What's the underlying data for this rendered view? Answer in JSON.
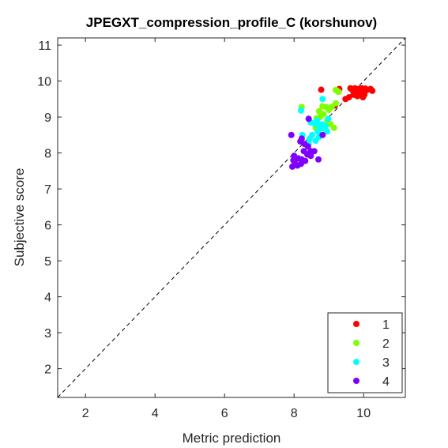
{
  "chart_data": {
    "type": "scatter",
    "title": "JPEGXT_compression_profile_C (korshunov)",
    "xlabel": "Metric prediction",
    "ylabel": "Subjective score",
    "xlim": [
      1.2,
      11.2
    ],
    "ylim": [
      1.2,
      11.2
    ],
    "xticks": [
      2,
      4,
      6,
      8,
      10
    ],
    "yticks": [
      2,
      3,
      4,
      5,
      6,
      7,
      8,
      9,
      10,
      11
    ],
    "grid": false,
    "legend_position": "bottom-right",
    "diagonal": {
      "style": "dashed",
      "color": "#000000",
      "from": [
        1.2,
        1.2
      ],
      "to": [
        11.2,
        11.2
      ]
    },
    "series": [
      {
        "name": "1",
        "color": "#ff0000",
        "points": [
          [
            9.65,
            9.78
          ],
          [
            9.7,
            9.72
          ],
          [
            9.75,
            9.8
          ],
          [
            9.8,
            9.75
          ],
          [
            9.85,
            9.78
          ],
          [
            9.9,
            9.72
          ],
          [
            9.95,
            9.8
          ],
          [
            10.0,
            9.76
          ],
          [
            10.05,
            9.79
          ],
          [
            10.1,
            9.75
          ],
          [
            10.2,
            9.78
          ],
          [
            10.25,
            9.73
          ],
          [
            9.72,
            9.62
          ],
          [
            9.82,
            9.58
          ],
          [
            9.92,
            9.64
          ],
          [
            10.02,
            9.62
          ],
          [
            9.58,
            9.55
          ],
          [
            9.48,
            9.5
          ],
          [
            9.3,
            9.78
          ],
          [
            8.78,
            9.76
          ],
          [
            9.18,
            9.32
          ],
          [
            9.62,
            9.8
          ],
          [
            9.88,
            9.66
          ],
          [
            9.98,
            9.55
          ]
        ]
      },
      {
        "name": "2",
        "color": "#7fff00",
        "points": [
          [
            9.22,
            9.74
          ],
          [
            9.28,
            9.7
          ],
          [
            9.2,
            9.75
          ],
          [
            8.22,
            9.28
          ],
          [
            8.82,
            9.3
          ],
          [
            8.92,
            9.28
          ],
          [
            9.08,
            9.28
          ],
          [
            9.2,
            9.38
          ],
          [
            9.0,
            9.2
          ],
          [
            8.72,
            9.16
          ],
          [
            8.64,
            8.96
          ],
          [
            8.75,
            9.0
          ],
          [
            8.85,
            9.08
          ],
          [
            8.95,
            8.9
          ],
          [
            9.05,
            8.8
          ],
          [
            9.15,
            8.7
          ],
          [
            8.9,
            8.65
          ],
          [
            8.62,
            8.7
          ]
        ]
      },
      {
        "name": "3",
        "color": "#00ffff",
        "points": [
          [
            8.82,
            9.5
          ],
          [
            8.2,
            9.18
          ],
          [
            8.48,
            8.85
          ],
          [
            8.58,
            8.82
          ],
          [
            8.7,
            8.78
          ],
          [
            8.8,
            8.8
          ],
          [
            8.9,
            8.75
          ],
          [
            8.95,
            8.6
          ],
          [
            8.68,
            8.6
          ],
          [
            8.72,
            8.45
          ],
          [
            8.62,
            8.34
          ],
          [
            8.52,
            8.5
          ],
          [
            8.24,
            8.5
          ],
          [
            8.42,
            8.25
          ],
          [
            8.66,
            8.9
          ],
          [
            8.98,
            8.95
          ],
          [
            8.45,
            8.4
          ],
          [
            8.78,
            8.68
          ]
        ]
      },
      {
        "name": "4",
        "color": "#7f00ff",
        "points": [
          [
            8.42,
            8.95
          ],
          [
            7.92,
            8.5
          ],
          [
            8.22,
            8.4
          ],
          [
            8.18,
            8.32
          ],
          [
            8.3,
            8.25
          ],
          [
            8.4,
            8.18
          ],
          [
            8.82,
            8.5
          ],
          [
            8.48,
            8.05
          ],
          [
            8.58,
            8.05
          ],
          [
            8.28,
            8.05
          ],
          [
            8.38,
            7.96
          ],
          [
            8.48,
            7.92
          ],
          [
            8.0,
            7.92
          ],
          [
            7.98,
            7.8
          ],
          [
            8.12,
            7.85
          ],
          [
            8.22,
            7.82
          ],
          [
            8.32,
            7.78
          ],
          [
            8.2,
            7.7
          ],
          [
            8.1,
            7.65
          ],
          [
            7.95,
            7.62
          ],
          [
            8.02,
            7.72
          ],
          [
            8.7,
            7.82
          ]
        ]
      }
    ]
  }
}
